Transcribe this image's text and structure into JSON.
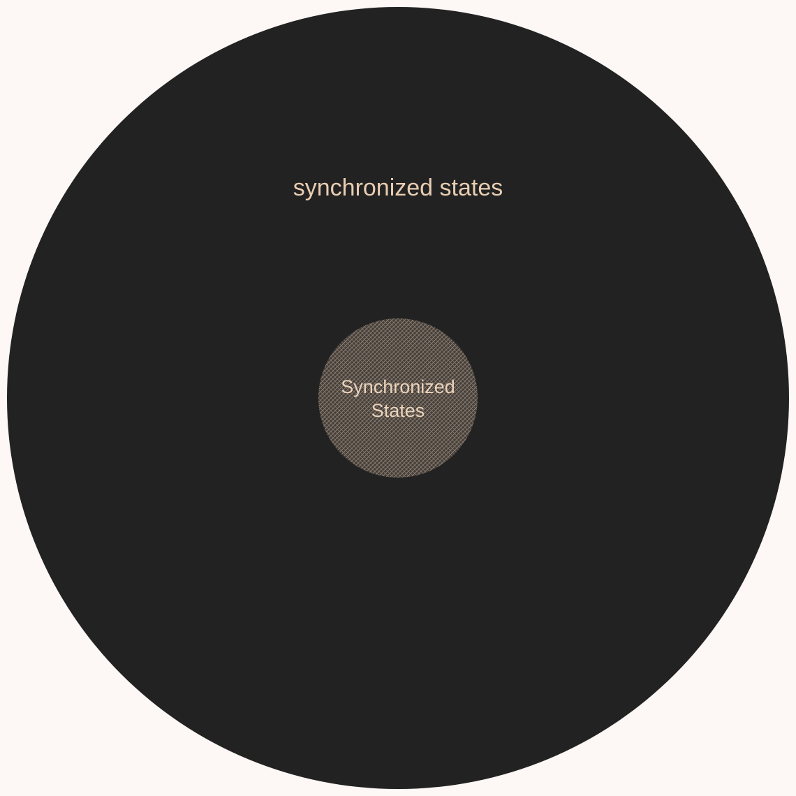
{
  "diagram": {
    "outer_circle": {
      "label": "synchronized states",
      "fill": "#222222",
      "text_color": "#e8cdb2"
    },
    "inner_circle": {
      "label_line1": "Synchronized",
      "label_line2": "States",
      "fill": "#5c524a",
      "hatch_color": "#a89888",
      "text_color": "#ead3bb"
    },
    "background": "#fdf8f5"
  }
}
